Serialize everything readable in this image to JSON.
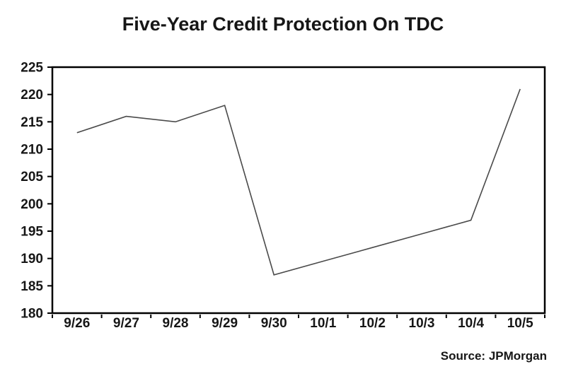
{
  "chart_data": {
    "type": "line",
    "title": "Five-Year Credit Protection On TDC",
    "categories": [
      "9/26",
      "9/27",
      "9/28",
      "9/29",
      "9/30",
      "10/1",
      "10/2",
      "10/3",
      "10/4",
      "10/5"
    ],
    "values": [
      213,
      216,
      215,
      218,
      187,
      189.5,
      192,
      194.5,
      197,
      221
    ],
    "ylim": [
      180,
      225
    ],
    "yticks": [
      225,
      220,
      215,
      210,
      205,
      200,
      195,
      190,
      185,
      180
    ],
    "xlabel": "",
    "ylabel": "",
    "grid": false,
    "legend": "none",
    "line_color": "#4a4a4a",
    "frame_color": "#000000",
    "text_color": "#161616",
    "background_color": "#ffffff"
  },
  "source": {
    "label": "Source: JPMorgan"
  }
}
